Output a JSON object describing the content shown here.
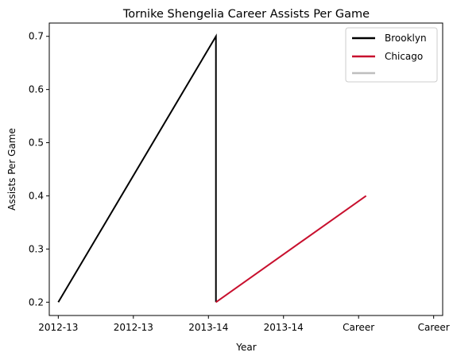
{
  "chart_data": {
    "type": "line",
    "title": "Tornike Shengelia Career Assists Per Game",
    "xlabel": "Year",
    "ylabel": "Assists Per Game",
    "x_tick_labels": [
      "2012-13",
      "2012-13",
      "2013-14",
      "2013-14",
      "Career",
      "Career"
    ],
    "x_range": [
      -0.12,
      5.12
    ],
    "y_ticks": [
      "0.2",
      "0.3",
      "0.4",
      "0.5",
      "0.6",
      "0.7"
    ],
    "ylim": [
      0.175,
      0.725
    ],
    "grid": false,
    "legend_position": "top-right",
    "series": [
      {
        "name": "Brooklyn",
        "color": "#000000",
        "x": [
          0,
          2.1,
          2.1
        ],
        "y": [
          0.2,
          0.7,
          0.2
        ]
      },
      {
        "name": "Chicago",
        "color": "#c8102e",
        "x": [
          2.1,
          4.1
        ],
        "y": [
          0.2,
          0.4
        ]
      },
      {
        "name": "",
        "color": "#bebebe",
        "x": [],
        "y": []
      }
    ]
  }
}
